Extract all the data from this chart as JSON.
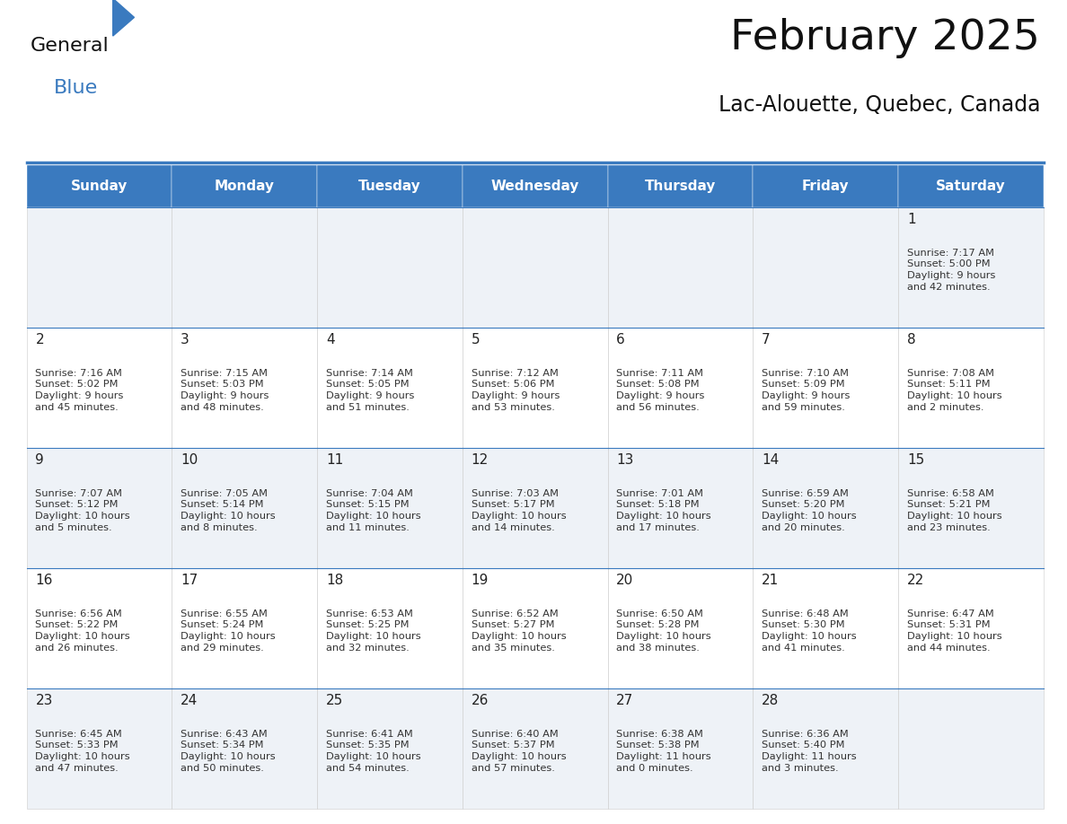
{
  "title": "February 2025",
  "subtitle": "Lac-Alouette, Quebec, Canada",
  "header_color": "#3a7abf",
  "header_text_color": "#ffffff",
  "cell_bg_even": "#eef2f7",
  "cell_bg_odd": "#ffffff",
  "border_color": "#3a7abf",
  "text_color": "#333333",
  "day_number_color": "#222222",
  "days_of_week": [
    "Sunday",
    "Monday",
    "Tuesday",
    "Wednesday",
    "Thursday",
    "Friday",
    "Saturday"
  ],
  "weeks": [
    [
      {
        "day": null,
        "info": null
      },
      {
        "day": null,
        "info": null
      },
      {
        "day": null,
        "info": null
      },
      {
        "day": null,
        "info": null
      },
      {
        "day": null,
        "info": null
      },
      {
        "day": null,
        "info": null
      },
      {
        "day": 1,
        "info": "Sunrise: 7:17 AM\nSunset: 5:00 PM\nDaylight: 9 hours\nand 42 minutes."
      }
    ],
    [
      {
        "day": 2,
        "info": "Sunrise: 7:16 AM\nSunset: 5:02 PM\nDaylight: 9 hours\nand 45 minutes."
      },
      {
        "day": 3,
        "info": "Sunrise: 7:15 AM\nSunset: 5:03 PM\nDaylight: 9 hours\nand 48 minutes."
      },
      {
        "day": 4,
        "info": "Sunrise: 7:14 AM\nSunset: 5:05 PM\nDaylight: 9 hours\nand 51 minutes."
      },
      {
        "day": 5,
        "info": "Sunrise: 7:12 AM\nSunset: 5:06 PM\nDaylight: 9 hours\nand 53 minutes."
      },
      {
        "day": 6,
        "info": "Sunrise: 7:11 AM\nSunset: 5:08 PM\nDaylight: 9 hours\nand 56 minutes."
      },
      {
        "day": 7,
        "info": "Sunrise: 7:10 AM\nSunset: 5:09 PM\nDaylight: 9 hours\nand 59 minutes."
      },
      {
        "day": 8,
        "info": "Sunrise: 7:08 AM\nSunset: 5:11 PM\nDaylight: 10 hours\nand 2 minutes."
      }
    ],
    [
      {
        "day": 9,
        "info": "Sunrise: 7:07 AM\nSunset: 5:12 PM\nDaylight: 10 hours\nand 5 minutes."
      },
      {
        "day": 10,
        "info": "Sunrise: 7:05 AM\nSunset: 5:14 PM\nDaylight: 10 hours\nand 8 minutes."
      },
      {
        "day": 11,
        "info": "Sunrise: 7:04 AM\nSunset: 5:15 PM\nDaylight: 10 hours\nand 11 minutes."
      },
      {
        "day": 12,
        "info": "Sunrise: 7:03 AM\nSunset: 5:17 PM\nDaylight: 10 hours\nand 14 minutes."
      },
      {
        "day": 13,
        "info": "Sunrise: 7:01 AM\nSunset: 5:18 PM\nDaylight: 10 hours\nand 17 minutes."
      },
      {
        "day": 14,
        "info": "Sunrise: 6:59 AM\nSunset: 5:20 PM\nDaylight: 10 hours\nand 20 minutes."
      },
      {
        "day": 15,
        "info": "Sunrise: 6:58 AM\nSunset: 5:21 PM\nDaylight: 10 hours\nand 23 minutes."
      }
    ],
    [
      {
        "day": 16,
        "info": "Sunrise: 6:56 AM\nSunset: 5:22 PM\nDaylight: 10 hours\nand 26 minutes."
      },
      {
        "day": 17,
        "info": "Sunrise: 6:55 AM\nSunset: 5:24 PM\nDaylight: 10 hours\nand 29 minutes."
      },
      {
        "day": 18,
        "info": "Sunrise: 6:53 AM\nSunset: 5:25 PM\nDaylight: 10 hours\nand 32 minutes."
      },
      {
        "day": 19,
        "info": "Sunrise: 6:52 AM\nSunset: 5:27 PM\nDaylight: 10 hours\nand 35 minutes."
      },
      {
        "day": 20,
        "info": "Sunrise: 6:50 AM\nSunset: 5:28 PM\nDaylight: 10 hours\nand 38 minutes."
      },
      {
        "day": 21,
        "info": "Sunrise: 6:48 AM\nSunset: 5:30 PM\nDaylight: 10 hours\nand 41 minutes."
      },
      {
        "day": 22,
        "info": "Sunrise: 6:47 AM\nSunset: 5:31 PM\nDaylight: 10 hours\nand 44 minutes."
      }
    ],
    [
      {
        "day": 23,
        "info": "Sunrise: 6:45 AM\nSunset: 5:33 PM\nDaylight: 10 hours\nand 47 minutes."
      },
      {
        "day": 24,
        "info": "Sunrise: 6:43 AM\nSunset: 5:34 PM\nDaylight: 10 hours\nand 50 minutes."
      },
      {
        "day": 25,
        "info": "Sunrise: 6:41 AM\nSunset: 5:35 PM\nDaylight: 10 hours\nand 54 minutes."
      },
      {
        "day": 26,
        "info": "Sunrise: 6:40 AM\nSunset: 5:37 PM\nDaylight: 10 hours\nand 57 minutes."
      },
      {
        "day": 27,
        "info": "Sunrise: 6:38 AM\nSunset: 5:38 PM\nDaylight: 11 hours\nand 0 minutes."
      },
      {
        "day": 28,
        "info": "Sunrise: 6:36 AM\nSunset: 5:40 PM\nDaylight: 11 hours\nand 3 minutes."
      },
      {
        "day": null,
        "info": null
      }
    ]
  ],
  "fig_width": 11.88,
  "fig_height": 9.18,
  "title_fontsize": 34,
  "subtitle_fontsize": 17,
  "header_fontsize": 11,
  "day_number_fontsize": 11,
  "cell_text_fontsize": 8.2
}
